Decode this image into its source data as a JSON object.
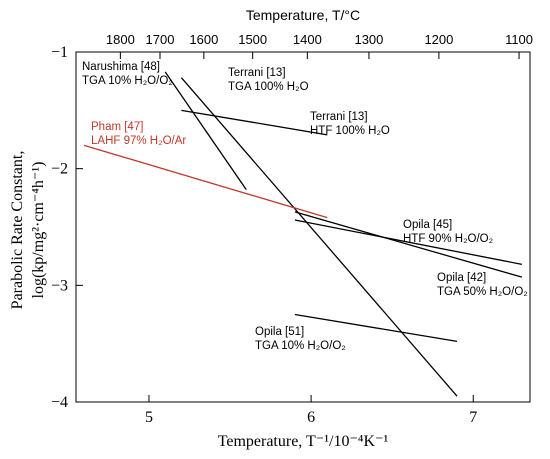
{
  "chart_data": {
    "type": "line",
    "xlabel": "Temperature, T⁻¹/10⁻⁴K⁻¹",
    "x2label": "Temperature, T/°C",
    "ylabel_line1": "Parabolic Rate Constant,",
    "ylabel_line2": "log(kp/mg²·cm⁻⁴h⁻¹)",
    "xlim": [
      4.55,
      7.35
    ],
    "ylim": [
      -4,
      -1
    ],
    "x_ticks": [
      5,
      6,
      7
    ],
    "y_ticks": [
      -1,
      -2,
      -3,
      -4
    ],
    "top_ticks_celsius": [
      1800,
      1700,
      1600,
      1500,
      1400,
      1300,
      1200,
      1100
    ],
    "grid": false,
    "series": [
      {
        "x": [
          5.1,
          5.6
        ],
        "y": [
          -1.17,
          -2.18
        ],
        "color": "#000000",
        "label": [
          "Narushima [48]",
          "TGA 10% H₂O/O₂"
        ]
      },
      {
        "x": [
          5.2,
          6.9
        ],
        "y": [
          -1.22,
          -3.95
        ],
        "color": "#000000",
        "label": [
          "Terrani [13]",
          "TGA 100% H₂O"
        ]
      },
      {
        "x": [
          5.2,
          6.1
        ],
        "y": [
          -1.5,
          -1.71
        ],
        "color": "#000000",
        "label": [
          "Terrani [13]",
          "HTF 100% H₂O"
        ]
      },
      {
        "x": [
          4.6,
          6.1
        ],
        "y": [
          -1.8,
          -2.42
        ],
        "color": "#c0392b",
        "label": [
          "Pham [47]",
          "LAHF 97% H₂O/Ar"
        ]
      },
      {
        "x": [
          5.9,
          7.3
        ],
        "y": [
          -2.37,
          -2.93
        ],
        "color": "#000000",
        "label": [
          "Opila [45]",
          "HTF 90% H₂O/O₂"
        ]
      },
      {
        "x": [
          5.9,
          7.3
        ],
        "y": [
          -2.44,
          -2.82
        ],
        "color": "#000000",
        "label": [
          "Opila [42]",
          "TGA 50% H₂O/O₂"
        ]
      },
      {
        "x": [
          5.9,
          6.9
        ],
        "y": [
          -3.25,
          -3.48
        ],
        "color": "#000000",
        "label": [
          "Opila [51]",
          "TGA 10% H₂O/O₂"
        ]
      }
    ]
  }
}
